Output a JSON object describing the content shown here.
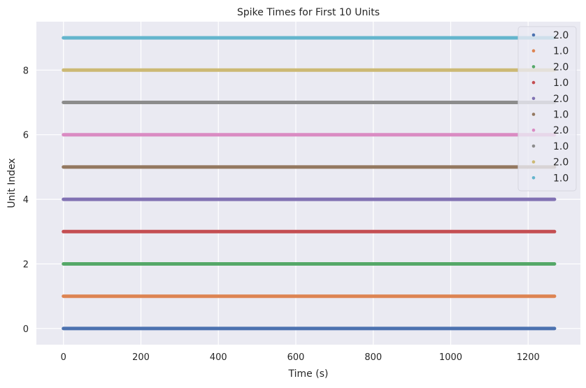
{
  "chart_data": {
    "type": "scatter",
    "title": "Spike Times for First 10 Units",
    "xlabel": "Time (s)",
    "ylabel": "Unit Index",
    "xlim": [
      -70,
      1335
    ],
    "ylim": [
      -0.5,
      9.5
    ],
    "x_ticks": [
      0,
      200,
      400,
      600,
      800,
      1000,
      1200
    ],
    "y_ticks": [
      0,
      2,
      4,
      6,
      8
    ],
    "grid": true,
    "legend_position": "top-right",
    "series": [
      {
        "name": "2.0",
        "unit": 0,
        "x_range": [
          0,
          1268
        ],
        "color": "#4c72b0"
      },
      {
        "name": "1.0",
        "unit": 1,
        "x_range": [
          0,
          1268
        ],
        "color": "#dd8452"
      },
      {
        "name": "2.0",
        "unit": 2,
        "x_range": [
          0,
          1268
        ],
        "color": "#55a868"
      },
      {
        "name": "1.0",
        "unit": 3,
        "x_range": [
          0,
          1268
        ],
        "color": "#c44e52"
      },
      {
        "name": "2.0",
        "unit": 4,
        "x_range": [
          0,
          1268
        ],
        "color": "#8172b3"
      },
      {
        "name": "1.0",
        "unit": 5,
        "x_range": [
          0,
          1268
        ],
        "color": "#937860"
      },
      {
        "name": "2.0",
        "unit": 6,
        "x_range": [
          0,
          1268
        ],
        "color": "#da8bc3"
      },
      {
        "name": "1.0",
        "unit": 7,
        "x_range": [
          0,
          1268
        ],
        "color": "#8c8c8c"
      },
      {
        "name": "2.0",
        "unit": 8,
        "x_range": [
          0,
          1268
        ],
        "color": "#ccb974"
      },
      {
        "name": "1.0",
        "unit": 9,
        "x_range": [
          0,
          1268
        ],
        "color": "#64b5cd"
      }
    ]
  }
}
